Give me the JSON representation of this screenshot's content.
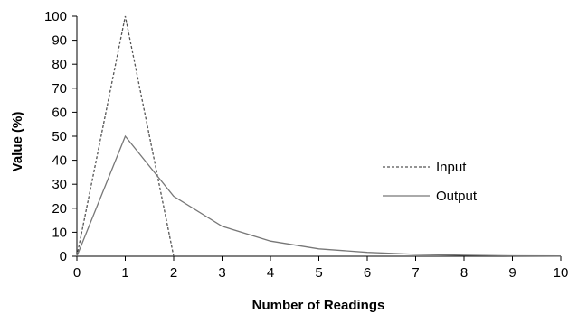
{
  "chart_data": {
    "type": "line",
    "title": "",
    "xlabel": "Number of Readings",
    "ylabel": "Value (%)",
    "xlim": [
      0,
      10
    ],
    "ylim": [
      0,
      100
    ],
    "x_ticks": [
      0,
      1,
      2,
      3,
      4,
      5,
      6,
      7,
      8,
      9,
      10
    ],
    "y_ticks": [
      0,
      10,
      20,
      30,
      40,
      50,
      60,
      70,
      80,
      90,
      100
    ],
    "grid": false,
    "legend_position": "right",
    "series": [
      {
        "name": "Input",
        "line_style": "dashed",
        "color": "#555555",
        "x": [
          0,
          1,
          2
        ],
        "y": [
          0,
          100,
          0
        ]
      },
      {
        "name": "Output",
        "line_style": "solid",
        "color": "#777777",
        "x": [
          0,
          1,
          2,
          3,
          4,
          5,
          6,
          7,
          8,
          9,
          10
        ],
        "y": [
          0,
          50,
          25,
          12.5,
          6.3,
          3.1,
          1.6,
          0.8,
          0.4,
          0.2,
          0.1
        ]
      }
    ]
  }
}
